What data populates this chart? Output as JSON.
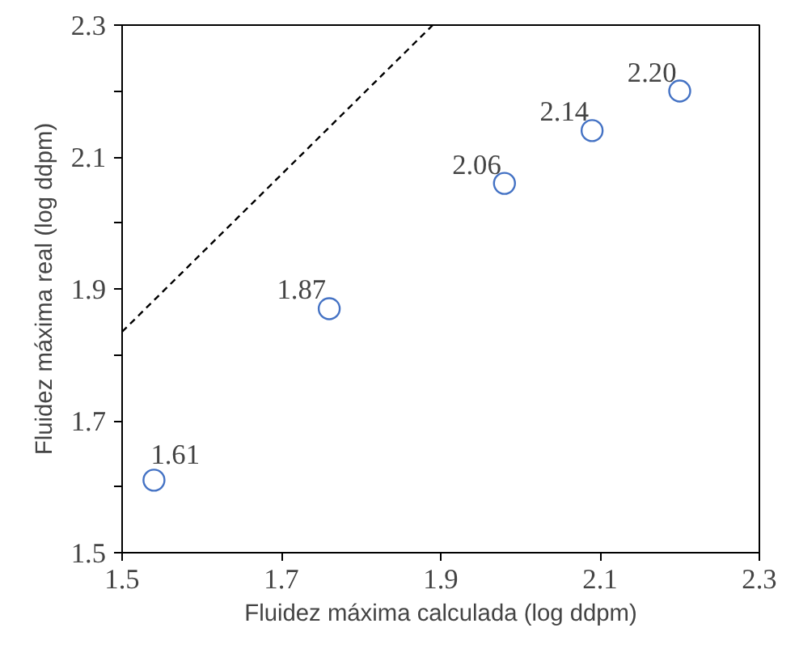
{
  "chart_data": {
    "type": "scatter",
    "xlabel": "Fluidez máxima calculada (log ddpm)",
    "ylabel": "Fluidez máxima real (log ddpm)",
    "series": [
      {
        "color": "#4472c4",
        "marker": "circle",
        "x": [
          1.54,
          1.76,
          1.98,
          2.09,
          2.2
        ],
        "values": [
          1.61,
          1.87,
          2.06,
          2.14,
          2.2
        ],
        "value_labels": [
          "1.61",
          "1.87",
          "2.06",
          "2.14",
          "2.20"
        ]
      },
      {
        "type": "line",
        "color": "#000000",
        "line_style": "dashed",
        "marker": "none",
        "x": [
          1.5,
          1.89
        ],
        "values": [
          1.835,
          2.3
        ]
      }
    ],
    "xlim": [
      1.5,
      2.3
    ],
    "ylim": [
      1.5,
      2.3
    ],
    "xticks": [
      1.5,
      1.7,
      1.9,
      2.1,
      2.3
    ],
    "yticks": [
      1.5,
      {
        "value": 1.6,
        "label": null
      },
      1.7,
      {
        "value": 1.8,
        "label": null
      },
      1.9,
      {
        "value": 2.0,
        "label": null
      },
      2.1,
      {
        "value": 2.2,
        "label": null
      },
      2.3
    ],
    "grid": false
  }
}
